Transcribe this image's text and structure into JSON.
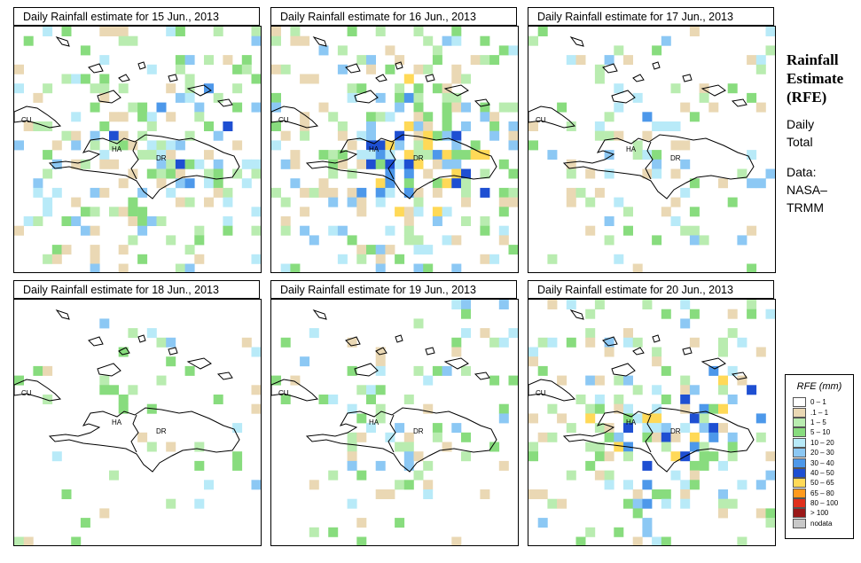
{
  "panels": [
    {
      "title": "Daily Rainfall estimate for  15 Jun., 2013",
      "seed": 15,
      "density": 0.42,
      "core": 0.18
    },
    {
      "title": "Daily Rainfall estimate for  16 Jun., 2013",
      "seed": 16,
      "density": 0.55,
      "core": 0.45
    },
    {
      "title": "Daily Rainfall estimate for  17 Jun., 2013",
      "seed": 17,
      "density": 0.22,
      "core": 0.1
    },
    {
      "title": "Daily Rainfall estimate for  18 Jun., 2013",
      "seed": 18,
      "density": 0.1,
      "core": 0.0
    },
    {
      "title": "Daily Rainfall estimate for  19 Jun., 2013",
      "seed": 19,
      "density": 0.2,
      "core": 0.05
    },
    {
      "title": "Daily Rainfall estimate for  20 Jun., 2013",
      "seed": 20,
      "density": 0.4,
      "core": 0.4
    }
  ],
  "map_labels": {
    "cuba": "CU",
    "haiti": "HA",
    "dominican_republic": "DR"
  },
  "side": {
    "title_line1": "Rainfall",
    "title_line2": "Estimate",
    "title_line3": "(RFE)",
    "period_line1": "Daily",
    "period_line2": "Total",
    "source_line1": "Data:",
    "source_line2": "NASA–",
    "source_line3": "TRMM"
  },
  "legend": {
    "title": "RFE (mm)",
    "items": [
      {
        "label": "0 – 1",
        "color": "#ffffff"
      },
      {
        "label": ".1 – 1",
        "color": "#ead8b4"
      },
      {
        "label": "1 – 5",
        "color": "#b9ecb0"
      },
      {
        "label": "5 – 10",
        "color": "#88dc7e"
      },
      {
        "label": "10 – 20",
        "color": "#b8eaf8"
      },
      {
        "label": "20 – 30",
        "color": "#8cc8f4"
      },
      {
        "label": "30 – 40",
        "color": "#4d98ea"
      },
      {
        "label": "40 – 50",
        "color": "#1e4fd2"
      },
      {
        "label": "50 – 65",
        "color": "#ffd957"
      },
      {
        "label": "65 – 80",
        "color": "#ff9a1e"
      },
      {
        "label": "80 – 100",
        "color": "#e0301c"
      },
      {
        "label": "> 100",
        "color": "#9a1818"
      },
      {
        "label": "nodata",
        "color": "#c8c8c8"
      }
    ]
  }
}
